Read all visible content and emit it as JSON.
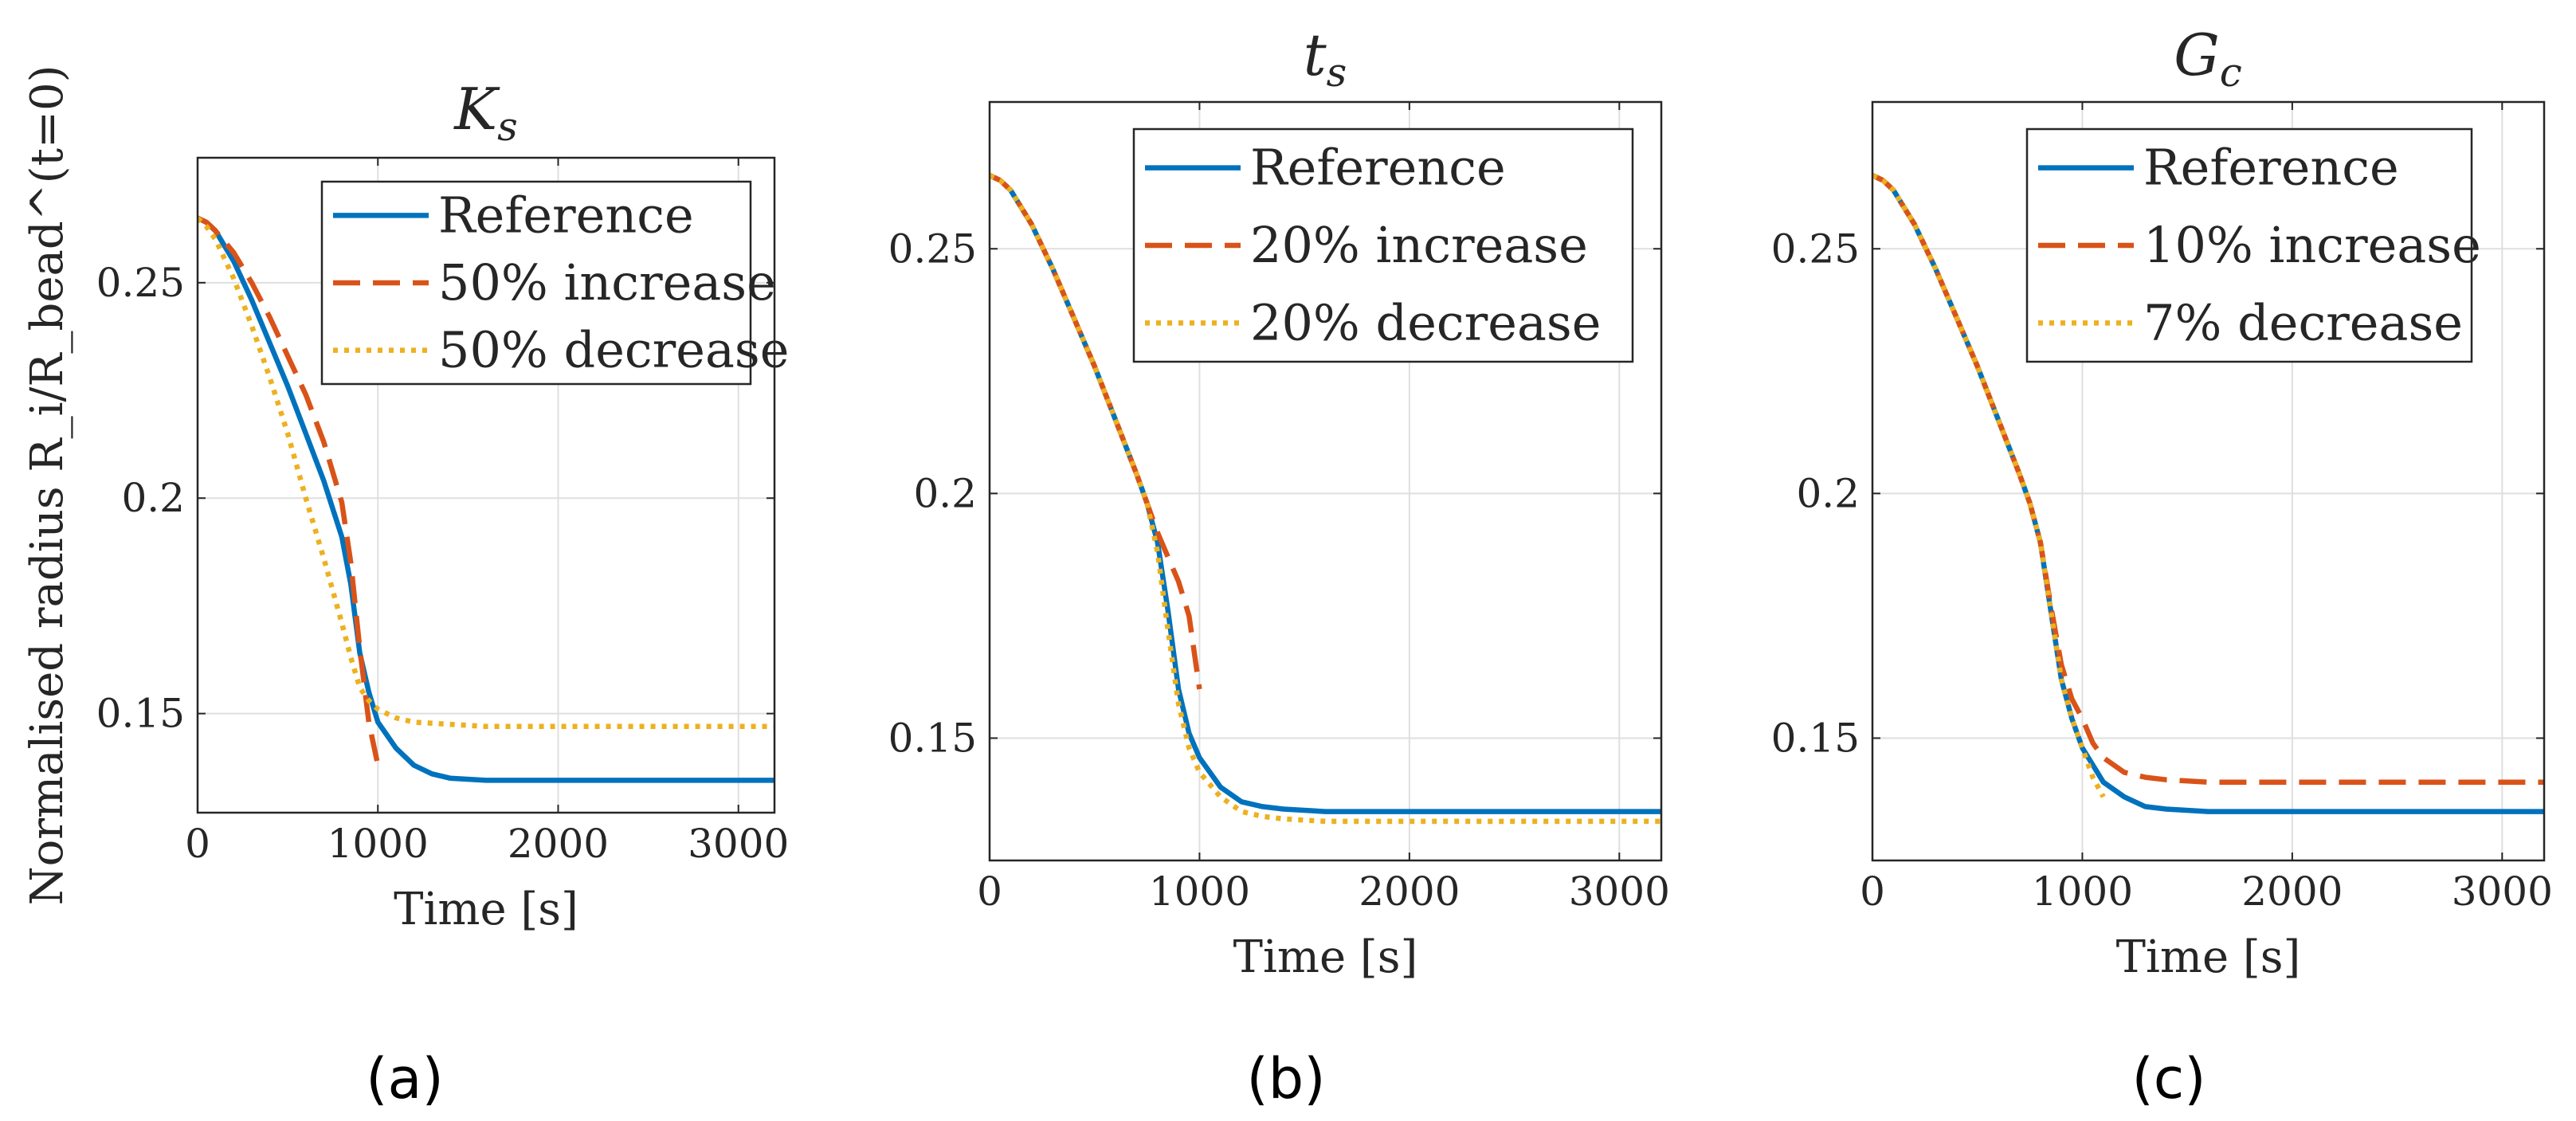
{
  "chart_data": [
    {
      "type": "line",
      "title": "K",
      "title_subscript": "s",
      "xlabel": "Time [s]",
      "ylabel": "Normalised radius R_i/R_bead^(t=0)",
      "xlim": [
        0,
        3200
      ],
      "ylim": [
        0.127,
        0.279
      ],
      "xticks": [
        "0",
        "1000",
        "2000",
        "3000"
      ],
      "yticks": [
        "0.15",
        "0.2",
        "0.25"
      ],
      "xtick_values": [
        0,
        1000,
        2000,
        3000
      ],
      "ytick_values": [
        0.15,
        0.2,
        0.25
      ],
      "grid": true,
      "legend_position": "top-right",
      "panel_label": "(a)",
      "series": [
        {
          "name": "Reference",
          "color": "#0072bd",
          "style": "solid",
          "x": [
            0,
            50,
            100,
            200,
            300,
            400,
            500,
            600,
            700,
            800,
            850,
            900,
            950,
            1000,
            1100,
            1200,
            1300,
            1400,
            1600,
            2000,
            2500,
            3200
          ],
          "y": [
            0.265,
            0.264,
            0.262,
            0.255,
            0.246,
            0.236,
            0.226,
            0.215,
            0.204,
            0.191,
            0.18,
            0.164,
            0.155,
            0.148,
            0.142,
            0.138,
            0.136,
            0.135,
            0.1345,
            0.1345,
            0.1345,
            0.1345
          ]
        },
        {
          "name": "50% increase",
          "color": "#d95319",
          "style": "dashed",
          "x": [
            0,
            50,
            100,
            200,
            300,
            400,
            500,
            600,
            700,
            800,
            850,
            900,
            950,
            1000
          ],
          "y": [
            0.265,
            0.264,
            0.262,
            0.257,
            0.25,
            0.242,
            0.233,
            0.224,
            0.213,
            0.199,
            0.185,
            0.165,
            0.148,
            0.138
          ]
        },
        {
          "name": "50% decrease",
          "color": "#edb120",
          "style": "dotted",
          "x": [
            0,
            50,
            100,
            200,
            300,
            400,
            500,
            600,
            700,
            800,
            850,
            900,
            950,
            1000,
            1100,
            1200,
            1400,
            1600,
            2000,
            2500,
            3200
          ],
          "y": [
            0.265,
            0.263,
            0.26,
            0.251,
            0.24,
            0.228,
            0.215,
            0.2,
            0.186,
            0.171,
            0.163,
            0.156,
            0.153,
            0.151,
            0.149,
            0.148,
            0.1475,
            0.147,
            0.147,
            0.147,
            0.147
          ]
        }
      ]
    },
    {
      "type": "line",
      "title": "t",
      "title_subscript": "s",
      "xlabel": "Time [s]",
      "ylabel": "",
      "xlim": [
        0,
        3200
      ],
      "ylim": [
        0.125,
        0.28
      ],
      "xticks": [
        "0",
        "1000",
        "2000",
        "3000"
      ],
      "yticks": [
        "0.15",
        "0.2",
        "0.25"
      ],
      "xtick_values": [
        0,
        1000,
        2000,
        3000
      ],
      "ytick_values": [
        0.15,
        0.2,
        0.25
      ],
      "grid": true,
      "legend_position": "top-right",
      "panel_label": "(b)",
      "series": [
        {
          "name": "Reference",
          "color": "#0072bd",
          "style": "solid",
          "x": [
            0,
            50,
            100,
            200,
            300,
            400,
            500,
            600,
            700,
            750,
            800,
            850,
            900,
            950,
            1000,
            1100,
            1200,
            1300,
            1400,
            1600,
            2000,
            2500,
            3200
          ],
          "y": [
            0.265,
            0.264,
            0.262,
            0.255,
            0.246,
            0.236,
            0.226,
            0.215,
            0.204,
            0.198,
            0.19,
            0.176,
            0.16,
            0.151,
            0.146,
            0.14,
            0.137,
            0.136,
            0.1355,
            0.135,
            0.135,
            0.135,
            0.135
          ]
        },
        {
          "name": "20% increase",
          "color": "#d95319",
          "style": "dashed",
          "x": [
            0,
            50,
            100,
            200,
            300,
            400,
            500,
            600,
            700,
            750,
            800,
            850,
            900,
            950,
            1000
          ],
          "y": [
            0.265,
            0.264,
            0.262,
            0.255,
            0.246,
            0.236,
            0.226,
            0.215,
            0.204,
            0.198,
            0.192,
            0.187,
            0.182,
            0.175,
            0.16
          ]
        },
        {
          "name": "20% decrease",
          "color": "#edb120",
          "style": "dotted",
          "x": [
            0,
            50,
            100,
            200,
            300,
            400,
            500,
            600,
            700,
            750,
            800,
            850,
            900,
            950,
            1000,
            1100,
            1200,
            1300,
            1400,
            1600,
            2000,
            2500,
            3200
          ],
          "y": [
            0.265,
            0.264,
            0.262,
            0.255,
            0.246,
            0.236,
            0.226,
            0.215,
            0.204,
            0.198,
            0.188,
            0.172,
            0.157,
            0.148,
            0.143,
            0.138,
            0.135,
            0.134,
            0.1335,
            0.133,
            0.133,
            0.133,
            0.133
          ]
        }
      ]
    },
    {
      "type": "line",
      "title": "G",
      "title_subscript": "c",
      "xlabel": "Time [s]",
      "ylabel": "",
      "xlim": [
        0,
        3200
      ],
      "ylim": [
        0.125,
        0.28
      ],
      "xticks": [
        "0",
        "1000",
        "2000",
        "3000"
      ],
      "yticks": [
        "0.15",
        "0.2",
        "0.25"
      ],
      "xtick_values": [
        0,
        1000,
        2000,
        3000
      ],
      "ytick_values": [
        0.15,
        0.2,
        0.25
      ],
      "grid": true,
      "legend_position": "top-right",
      "panel_label": "(c)",
      "series": [
        {
          "name": "Reference",
          "color": "#0072bd",
          "style": "solid",
          "x": [
            0,
            50,
            100,
            200,
            300,
            400,
            500,
            600,
            700,
            750,
            800,
            850,
            900,
            950,
            1000,
            1100,
            1200,
            1300,
            1400,
            1600,
            2000,
            2500,
            3200
          ],
          "y": [
            0.265,
            0.264,
            0.262,
            0.255,
            0.246,
            0.236,
            0.226,
            0.215,
            0.204,
            0.198,
            0.19,
            0.176,
            0.162,
            0.154,
            0.148,
            0.141,
            0.138,
            0.136,
            0.1355,
            0.135,
            0.135,
            0.135,
            0.135
          ]
        },
        {
          "name": "10% increase",
          "color": "#d95319",
          "style": "dashed",
          "x": [
            0,
            50,
            100,
            200,
            300,
            400,
            500,
            600,
            700,
            750,
            800,
            850,
            900,
            950,
            1000,
            1050,
            1100,
            1200,
            1300,
            1400,
            1600,
            2000,
            2500,
            3200
          ],
          "y": [
            0.265,
            0.264,
            0.262,
            0.255,
            0.246,
            0.236,
            0.226,
            0.215,
            0.204,
            0.198,
            0.19,
            0.177,
            0.165,
            0.158,
            0.154,
            0.149,
            0.146,
            0.143,
            0.142,
            0.1415,
            0.141,
            0.141,
            0.141,
            0.141
          ]
        },
        {
          "name": "7% decrease",
          "color": "#edb120",
          "style": "dotted",
          "x": [
            0,
            50,
            100,
            200,
            300,
            400,
            500,
            600,
            700,
            750,
            800,
            850,
            900,
            950,
            1000,
            1050,
            1100
          ],
          "y": [
            0.265,
            0.264,
            0.262,
            0.255,
            0.246,
            0.236,
            0.226,
            0.215,
            0.204,
            0.198,
            0.19,
            0.176,
            0.162,
            0.154,
            0.148,
            0.142,
            0.138
          ]
        }
      ]
    }
  ]
}
